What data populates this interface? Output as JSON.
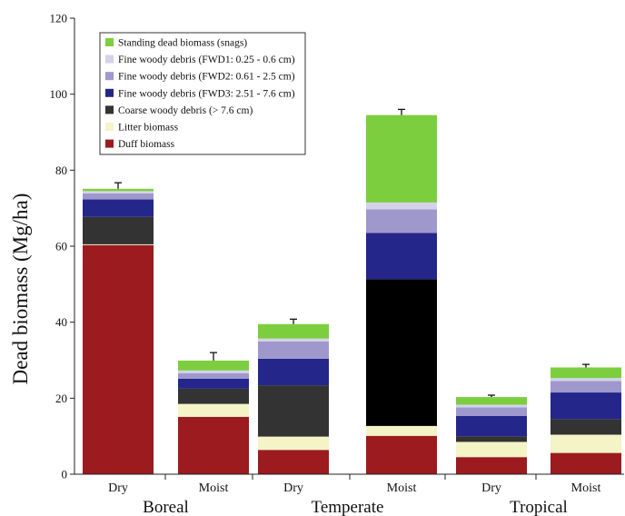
{
  "chart_data": {
    "type": "bar",
    "stacked": true,
    "ylabel": "Dead biomass (Mg/ha)",
    "xlabel": "",
    "title": "",
    "ylim": [
      0,
      120
    ],
    "yticks": [
      0,
      20,
      40,
      60,
      80,
      100,
      120
    ],
    "grid": false,
    "legend_position": "top-left",
    "categories": [
      "Dry",
      "Moist",
      "Dry",
      "Moist",
      "Dry",
      "Moist"
    ],
    "groups": [
      {
        "label": "Boreal",
        "span": [
          0,
          1
        ]
      },
      {
        "label": "Temperate",
        "span": [
          2,
          3
        ]
      },
      {
        "label": "Tropical",
        "span": [
          4,
          5
        ]
      }
    ],
    "series": [
      {
        "name": "Duff biomass",
        "color": "#9b1b1f",
        "values": [
          60.3,
          15.1,
          6.4,
          10.1,
          4.5,
          5.6
        ]
      },
      {
        "name": "Litter biomass",
        "color": "#f4f4c6",
        "values": [
          0.2,
          3.4,
          3.5,
          2.6,
          4.0,
          4.8
        ]
      },
      {
        "name": "Coarse woody debris (> 7.6 cm)",
        "color": "#333333",
        "values": [
          7.2,
          4.0,
          13.5,
          38.6,
          1.5,
          4.1
        ]
      },
      {
        "name": "Fine woody debris (FWD3: 2.51 - 7.6 cm)",
        "color": "#25268a",
        "values": [
          4.6,
          2.6,
          7.0,
          12.2,
          5.3,
          7.0
        ]
      },
      {
        "name": "Fine woody debris (FWD2: 0.61 - 2.5 cm)",
        "color": "#9e98cc",
        "values": [
          1.6,
          1.5,
          4.5,
          6.2,
          2.3,
          3.0
        ]
      },
      {
        "name": "Fine woody debris (FWD1: 0.25 - 0.6 cm)",
        "color": "#d3d2ea",
        "values": [
          0.6,
          0.7,
          0.8,
          1.8,
          0.7,
          0.8
        ]
      },
      {
        "name": "Standing dead biomass (snags)",
        "color": "#7cce3e",
        "values": [
          0.6,
          2.6,
          3.8,
          23.0,
          2.0,
          2.8
        ]
      }
    ],
    "errors": [
      1.6,
      2.1,
      1.3,
      1.5,
      0.5,
      0.8
    ],
    "series_colors_note": "",
    "special_colors": {
      "temperate_moist_cwd": "#000000"
    }
  }
}
